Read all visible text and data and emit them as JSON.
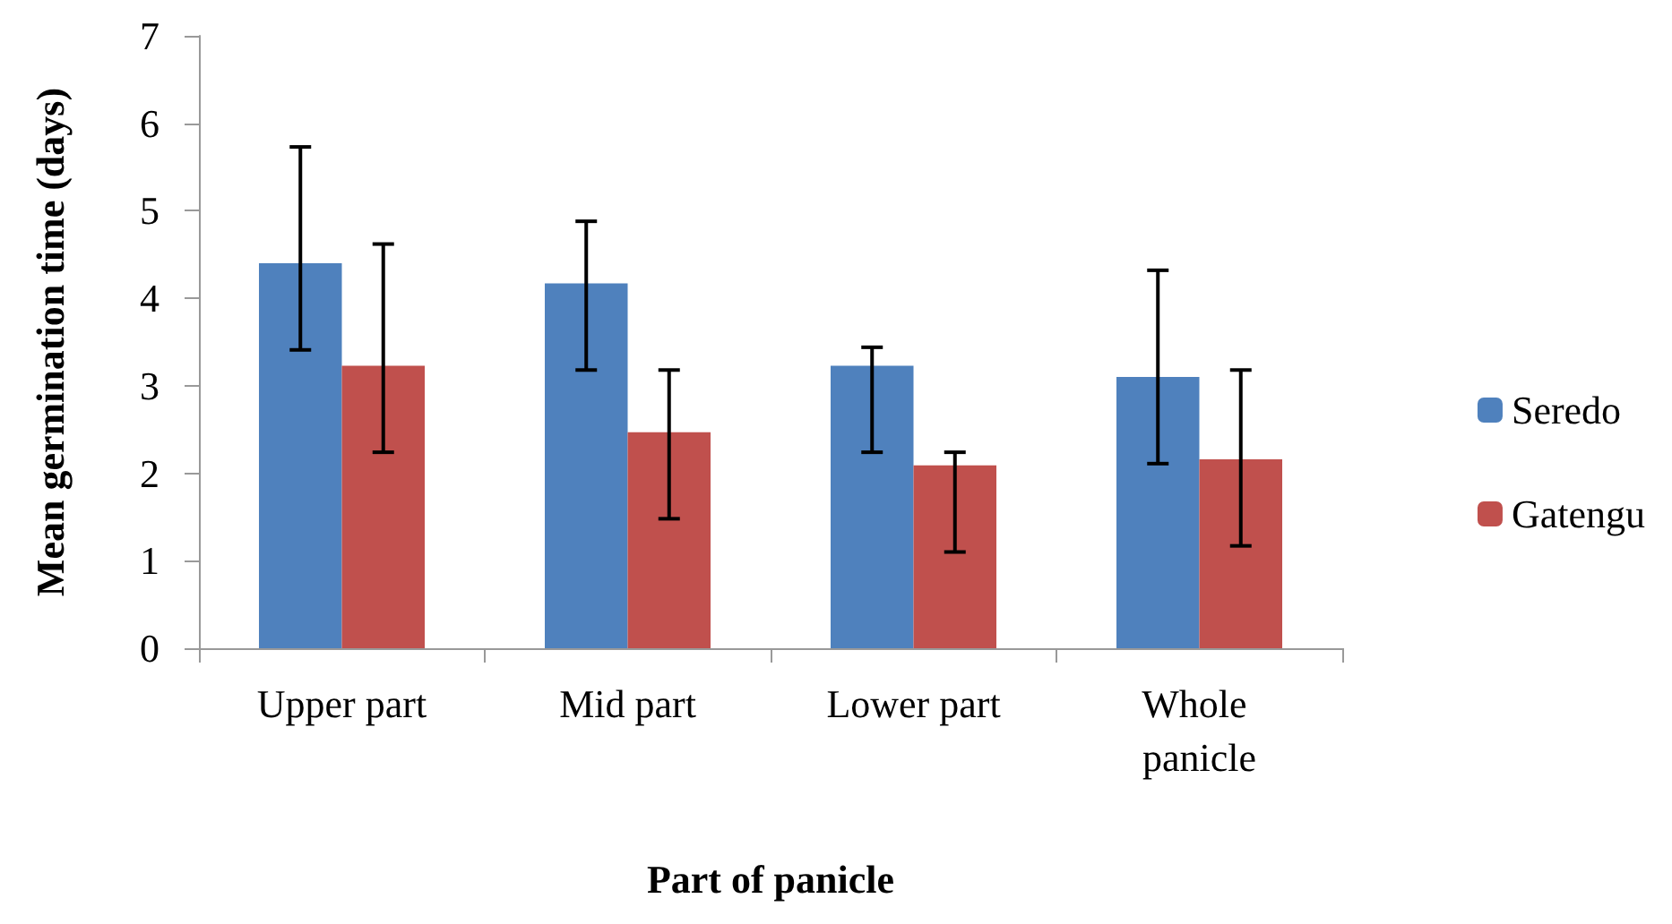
{
  "chart_data": {
    "type": "bar",
    "xlabel": "Part of panicle",
    "ylabel": "Mean germination time (days)",
    "categories": [
      "Upper part",
      "Mid part",
      "Lower part",
      "Whole panicle"
    ],
    "series": [
      {
        "name": "Seredo",
        "color": "#4f81bd",
        "values": [
          4.4,
          4.17,
          3.23,
          3.1
        ],
        "errors": [
          [
            3.41,
            5.73
          ],
          [
            3.18,
            4.88
          ],
          [
            2.24,
            3.44
          ],
          [
            2.11,
            4.32
          ]
        ]
      },
      {
        "name": "Gatengu",
        "color": "#c0504d",
        "values": [
          3.23,
          2.47,
          2.09,
          2.16
        ],
        "errors": [
          [
            2.24,
            4.62
          ],
          [
            1.48,
            3.18
          ],
          [
            1.1,
            2.24
          ],
          [
            1.17,
            3.18
          ]
        ]
      }
    ],
    "ylim": [
      0,
      7
    ],
    "yticks": [
      0,
      1,
      2,
      3,
      4,
      5,
      6,
      7
    ],
    "grid": false,
    "legend": "right"
  }
}
